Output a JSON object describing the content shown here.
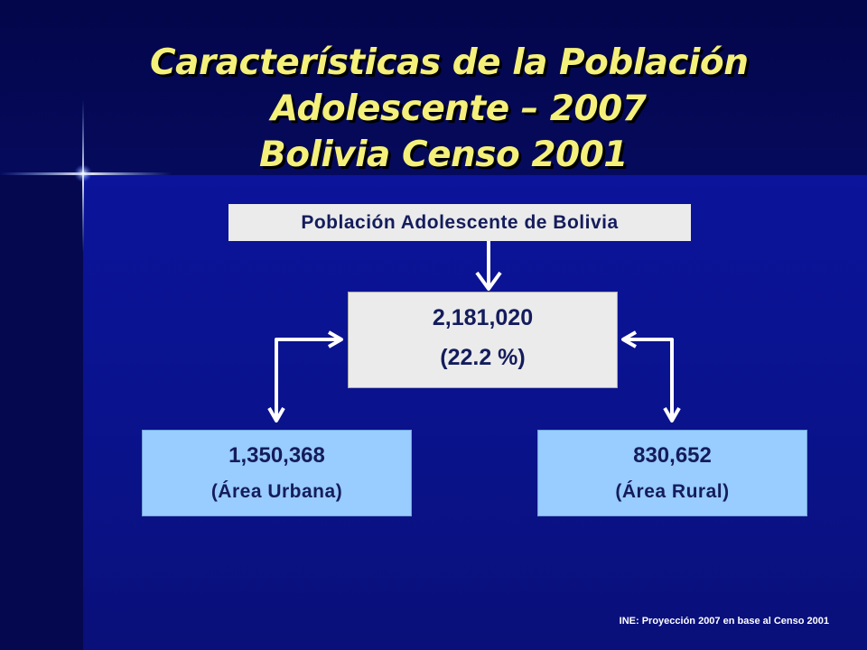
{
  "title": {
    "line1": "Características de la Población",
    "line2": "Adolescente – 2007",
    "line3": "Bolivia Censo 2001"
  },
  "diagram": {
    "header": "Población Adolescente de Bolivia",
    "total": {
      "value": "2,181,020",
      "percent": "(22.2 %)"
    },
    "urban": {
      "value": "1,350,368",
      "label": "(Área Urbana)"
    },
    "rural": {
      "value": "830,652",
      "label": "(Área Rural)"
    }
  },
  "source": "INE: Proyección 2007 en base al Censo 2001",
  "colors": {
    "title": "#f4f07a",
    "box_gray": "#ebebeb",
    "box_blue": "#99ccff",
    "box_text": "#141c5c",
    "background": "#0a0f78"
  }
}
